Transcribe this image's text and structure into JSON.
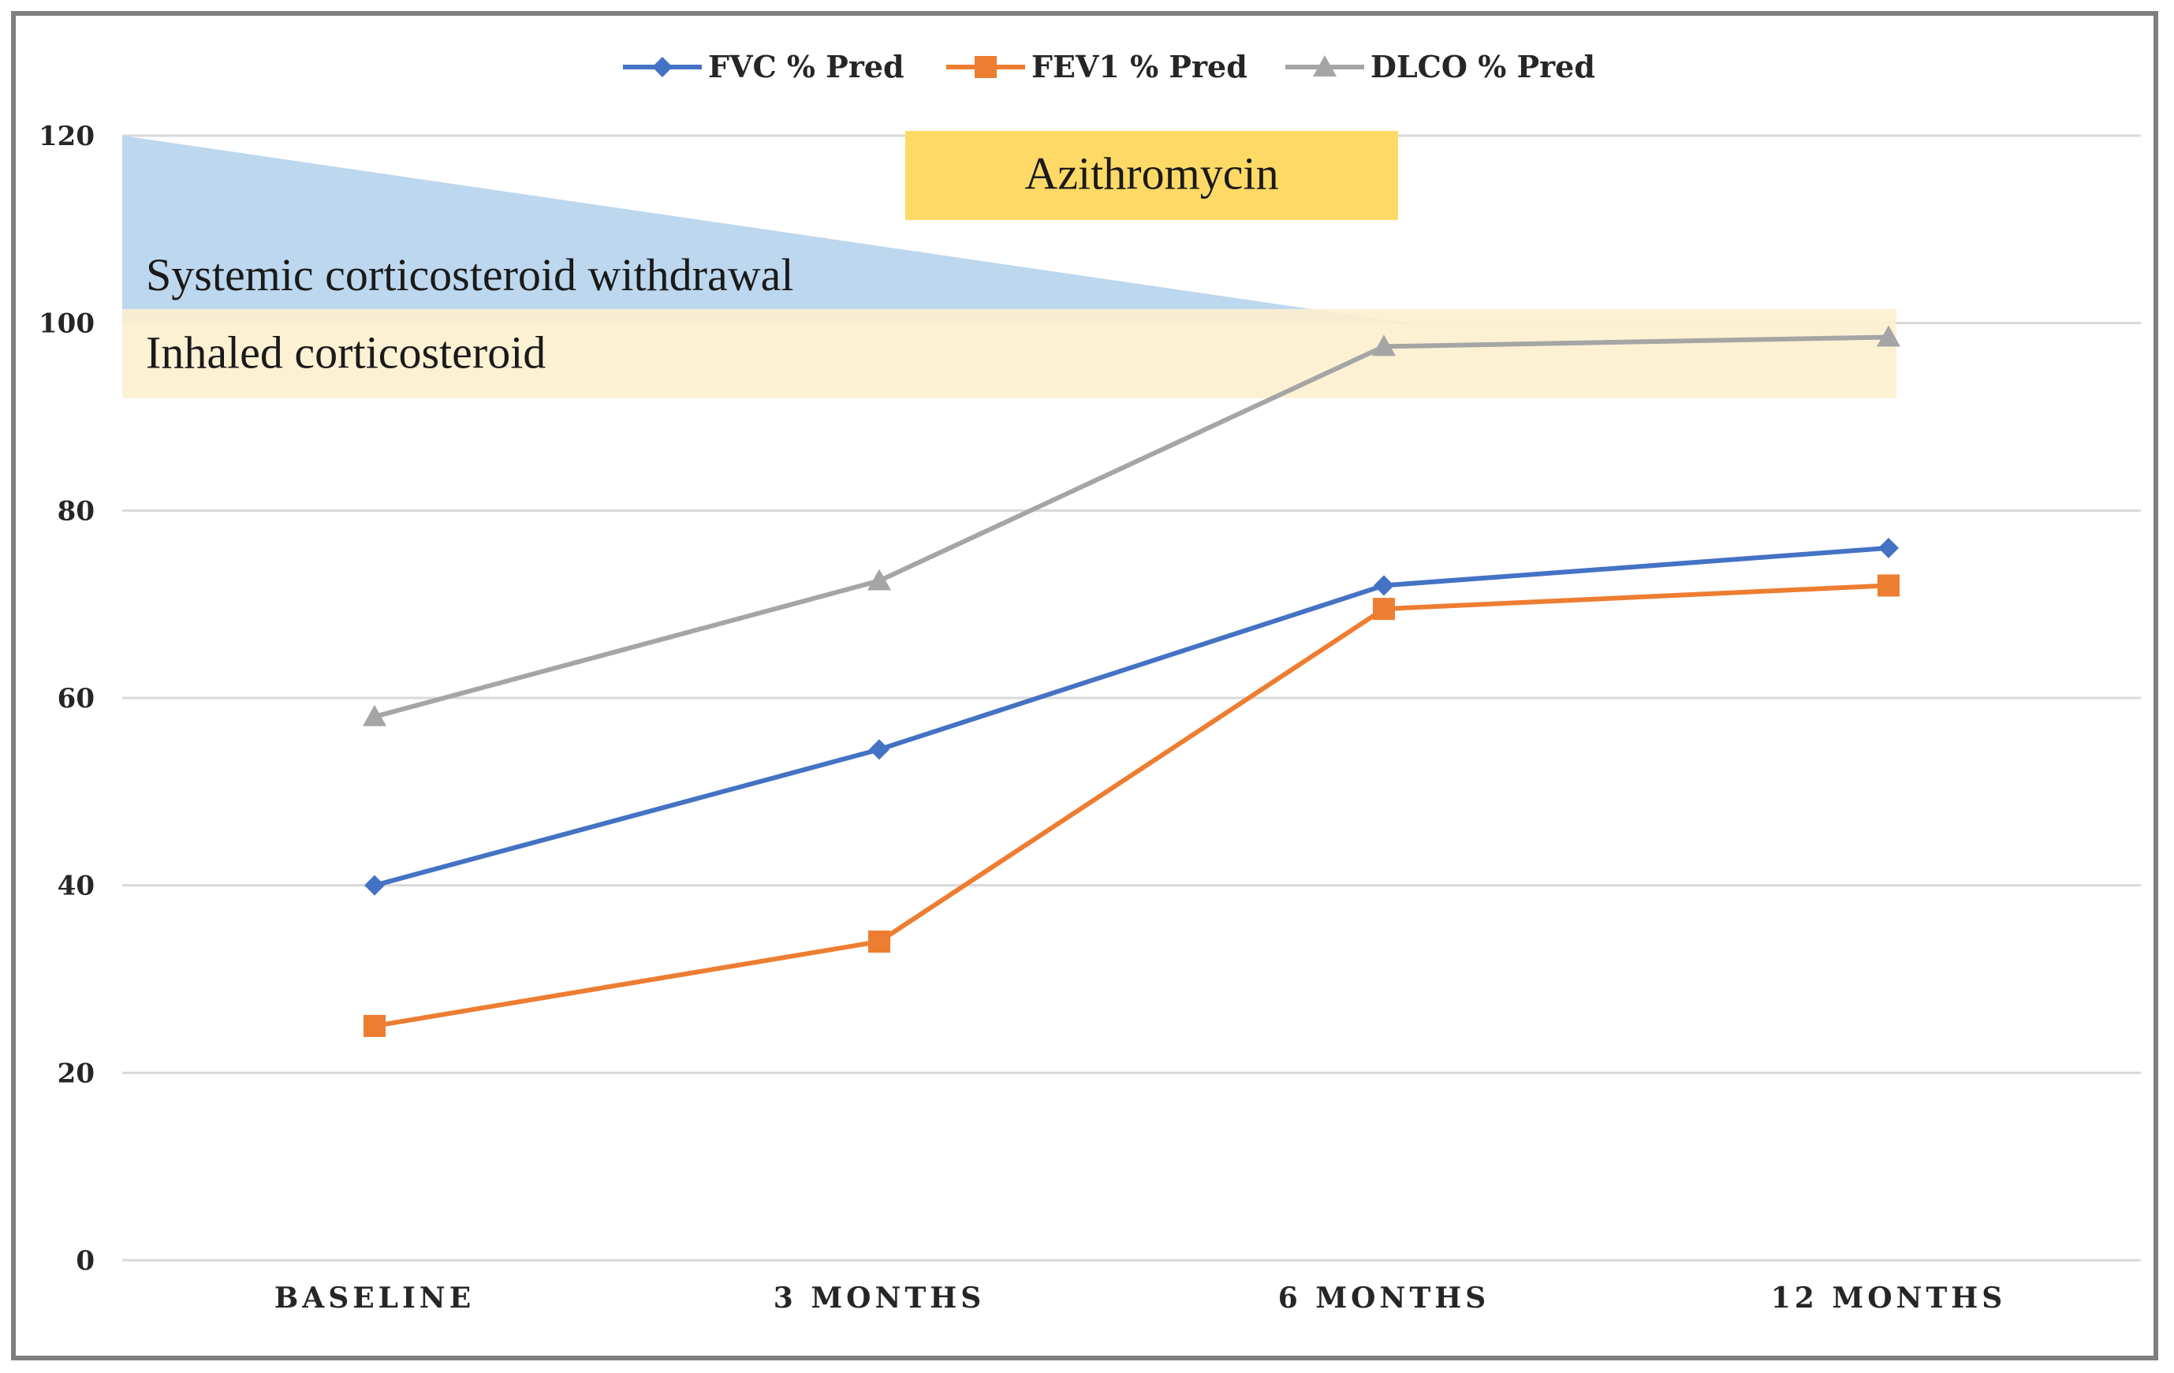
{
  "chart_data": {
    "type": "line",
    "categories": [
      "BASELINE",
      "3 MONTHS",
      "6 MONTHS",
      "12 MONTHS"
    ],
    "yticks": [
      "0",
      "20",
      "40",
      "60",
      "80",
      "100",
      "120"
    ],
    "ylim": [
      0,
      120
    ],
    "grid": true,
    "legend_position": "top-center",
    "series": [
      {
        "name": "FVC % Pred",
        "color": "#4472c4",
        "marker": "diamond",
        "values": [
          40,
          54.5,
          72,
          76
        ]
      },
      {
        "name": "FEV1 % Pred",
        "color": "#ed7d31",
        "marker": "square",
        "values": [
          25,
          34,
          69.5,
          72
        ]
      },
      {
        "name": "DLCO % Pred",
        "color": "#a5a5a5",
        "marker": "triangle",
        "values": [
          58,
          72.5,
          97.5,
          98.5
        ]
      }
    ],
    "annotations": [
      {
        "text": "Systemic corticosteroid withdrawal",
        "shape": "tapering-triangle",
        "color": "#bdd7ee"
      },
      {
        "text": "Inhaled corticosteroid",
        "shape": "band",
        "color": "#fdf0cf"
      },
      {
        "text": "Azithromycin",
        "shape": "box",
        "color": "#ffd966"
      }
    ]
  }
}
